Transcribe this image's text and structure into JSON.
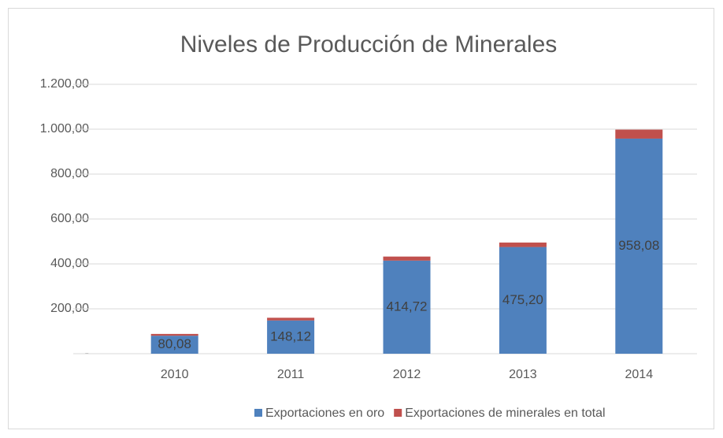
{
  "chart_data": {
    "type": "bar",
    "stacked": true,
    "title": "Niveles de Producción de Minerales",
    "categories": [
      "2010",
      "2011",
      "2012",
      "2013",
      "2014"
    ],
    "series": [
      {
        "name": "Exportaciones en oro",
        "color": "#4f81bd",
        "values": [
          80.08,
          148.12,
          414.72,
          475.2,
          958.08
        ],
        "value_labels": [
          "80,08",
          "148,12",
          "414,72",
          "475,20",
          "958,08"
        ]
      },
      {
        "name": "Exportaciones de minerales en total",
        "color": "#c0504d",
        "values": [
          8,
          12,
          18,
          20,
          40
        ]
      }
    ],
    "ylim": [
      0,
      1200
    ],
    "yticks": [
      {
        "value": 0,
        "label": "-"
      },
      {
        "value": 200,
        "label": "200,00"
      },
      {
        "value": 400,
        "label": "400,00"
      },
      {
        "value": 600,
        "label": "600,00"
      },
      {
        "value": 800,
        "label": "800,00"
      },
      {
        "value": 1000,
        "label": "1.000,00"
      },
      {
        "value": 1200,
        "label": "1.200,00"
      }
    ],
    "grid": true
  }
}
